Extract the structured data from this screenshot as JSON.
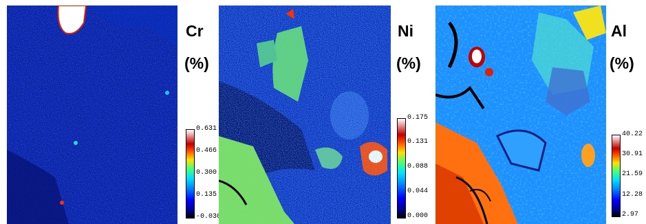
{
  "panels": [
    {
      "element": "Cr",
      "unit": "(%)",
      "ticks": [
        "0.631",
        "0.466",
        "0.300",
        "0.135",
        "-0.030"
      ],
      "colors": {
        "background": "#0a1fa8",
        "hot": "#ffffff"
      }
    },
    {
      "element": "Ni",
      "unit": "(%)",
      "ticks": [
        "0.175",
        "0.131",
        "0.088",
        "0.044",
        "0.000"
      ],
      "colors": {
        "background": "#1232c8",
        "hot": "#ff2000"
      }
    },
    {
      "element": "Al",
      "unit": "(%)",
      "ticks": [
        "40.22",
        "30.91",
        "21.59",
        "12.28",
        "2.97"
      ],
      "colors": {
        "background": "#20a0ff",
        "hot": "#ff5000"
      }
    }
  ]
}
